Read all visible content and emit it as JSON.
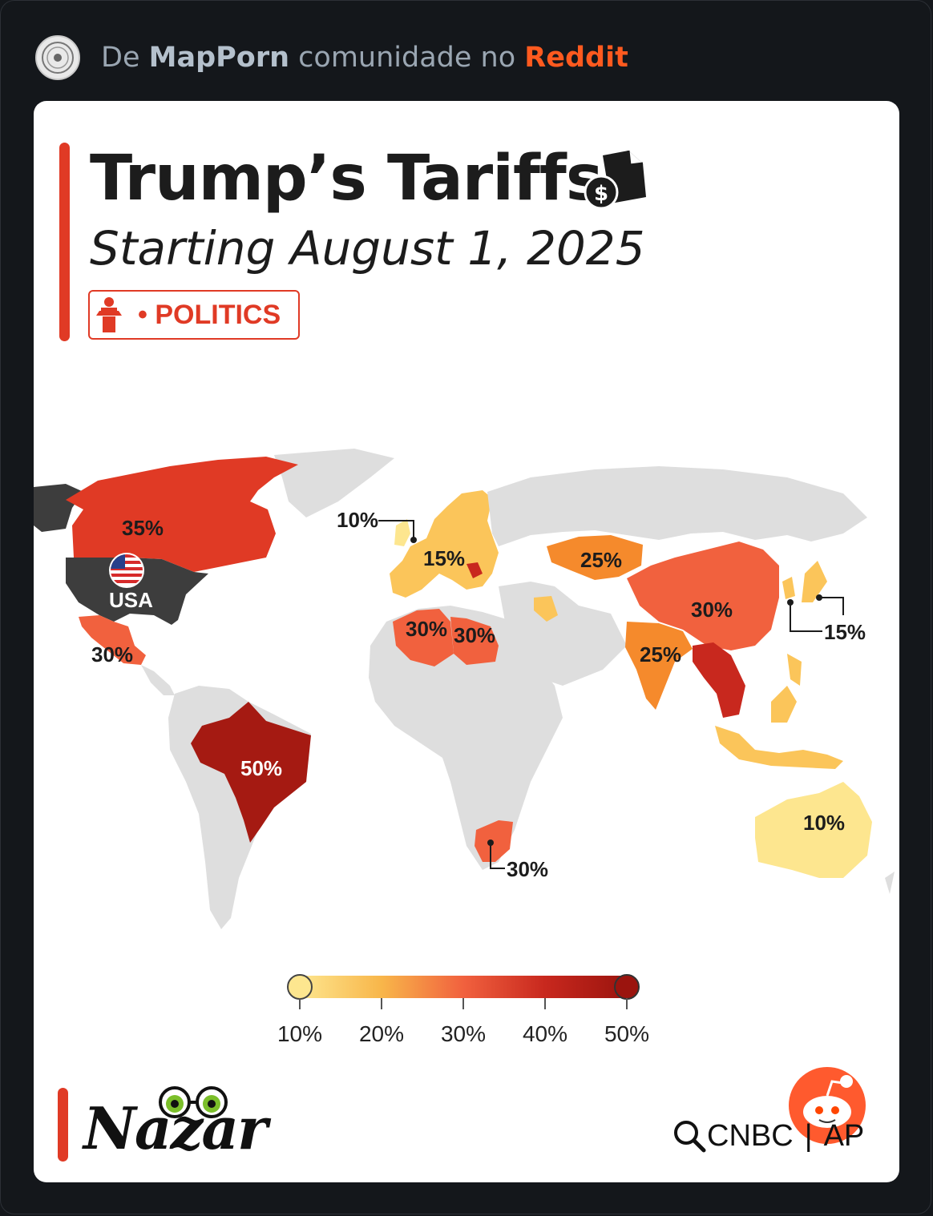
{
  "topbar": {
    "prefix": "De",
    "subreddit": "MapPorn",
    "middle": "comunidade no",
    "platform": "Reddit"
  },
  "header": {
    "title": "Trump’s Tariffs",
    "subtitle": "Starting August 1, 2025",
    "tag": "• POLITICS"
  },
  "map": {
    "labels": {
      "canada": "35%",
      "usa": "USA",
      "mexico": "30%",
      "brazil": "50%",
      "uk": "10%",
      "eu": "15%",
      "algeria": "30%",
      "libya": "30%",
      "south_africa": "30%",
      "kazakhstan": "25%",
      "china": "30%",
      "india": "25%",
      "japan_korea": "15%",
      "australia": "10%"
    },
    "colors": {
      "land": "#dedede",
      "usa": "#3d3d3d",
      "t10": "#fde68f",
      "t15": "#fbc55a",
      "t25": "#f58a2c",
      "t30": "#f1613e",
      "t35": "#e03a25",
      "t40": "#c8281e",
      "t50": "#a51a12"
    }
  },
  "legend": {
    "ticks": [
      "10%",
      "20%",
      "30%",
      "40%",
      "50%"
    ],
    "min": 10,
    "max": 50
  },
  "footer": {
    "brand": "Nazar",
    "sources": [
      "CNBC",
      "AP"
    ],
    "separator": "|"
  },
  "icons": [
    "subreddit-avatar-icon",
    "money-document-icon",
    "podium-icon",
    "us-flag-icon",
    "search-icon",
    "snoo-icon"
  ]
}
